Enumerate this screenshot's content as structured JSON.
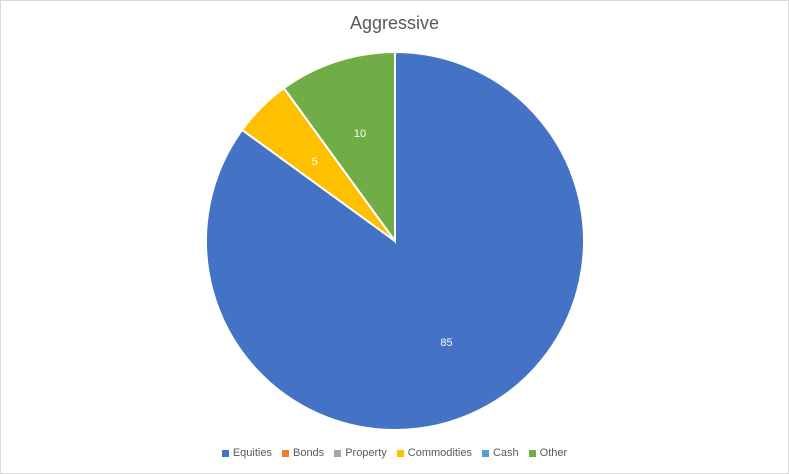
{
  "chart_data": {
    "type": "pie",
    "title": "Aggressive",
    "categories": [
      "Equities",
      "Bonds",
      "Property",
      "Commodities",
      "Cash",
      "Other"
    ],
    "values": [
      85,
      0,
      0,
      5,
      0,
      10
    ],
    "colors": [
      "#4472C4",
      "#ED7D31",
      "#A5A5A5",
      "#FFC000",
      "#5B9BD5",
      "#70AD47"
    ],
    "data_labels": [
      "85",
      "",
      "",
      "5",
      "",
      "10"
    ],
    "legend_position": "bottom",
    "start_angle": "12 o'clock, clockwise, starting with Equities"
  }
}
